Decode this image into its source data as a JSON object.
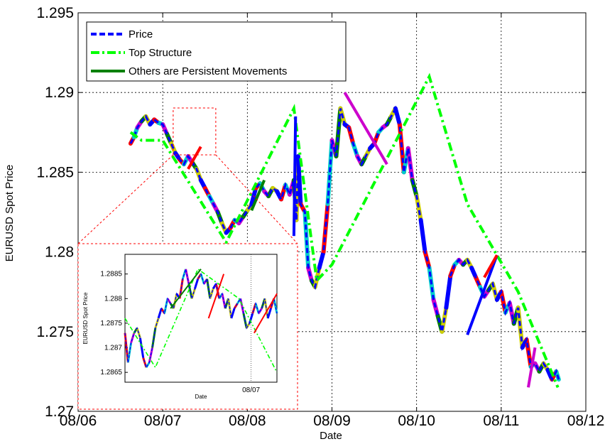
{
  "chart_data": {
    "type": "line",
    "xlabel": "Date",
    "ylabel": "EURUSD Spot Price",
    "x_ticks": [
      "08/06",
      "08/07",
      "08/08",
      "08/09",
      "08/10",
      "08/11",
      "08/12"
    ],
    "y_ticks": [
      "1.27",
      "1.275",
      "1.28",
      "1.285",
      "1.29",
      "1.295"
    ],
    "xlim": [
      0,
      6
    ],
    "ylim": [
      1.27,
      1.295
    ],
    "grid": true,
    "legend_position": "top-left",
    "legend": [
      {
        "label": "Price",
        "color": "#0000ff",
        "style": "dashed"
      },
      {
        "label": "Top Structure",
        "color": "#00ff00",
        "style": "dashdot"
      },
      {
        "label": "Others are Persistent Movements",
        "color": "#008000",
        "style": "solid"
      }
    ],
    "series": [
      {
        "name": "Price",
        "color": "#0000ff",
        "x": [
          0.62,
          0.66,
          0.7,
          0.75,
          0.8,
          0.85,
          0.9,
          0.95,
          1.0,
          1.05,
          1.1,
          1.15,
          1.2,
          1.25,
          1.3,
          1.35,
          1.4,
          1.45,
          1.5,
          1.55,
          1.6,
          1.65,
          1.7,
          1.75,
          1.8,
          1.85,
          1.9,
          1.95,
          2.0,
          2.05,
          2.1,
          2.15,
          2.2,
          2.25,
          2.3,
          2.35,
          2.4,
          2.45,
          2.5,
          2.55,
          2.58,
          2.6,
          2.63,
          2.68,
          2.72,
          2.76,
          2.8,
          2.85,
          2.9,
          2.95,
          3.0,
          3.05,
          3.1,
          3.15,
          3.2,
          3.25,
          3.3,
          3.35,
          3.4,
          3.45,
          3.5,
          3.55,
          3.6,
          3.65,
          3.7,
          3.75,
          3.8,
          3.85,
          3.9,
          3.95,
          4.0,
          4.05,
          4.1,
          4.15,
          4.2,
          4.25,
          4.3,
          4.35,
          4.4,
          4.45,
          4.5,
          4.55,
          4.6,
          4.65,
          4.7,
          4.75,
          4.8,
          4.85,
          4.9,
          4.95,
          5.0,
          5.05,
          5.1,
          5.15,
          5.2,
          5.25,
          5.3,
          5.35,
          5.4,
          5.45,
          5.5,
          5.55,
          5.6,
          5.65,
          5.68
        ],
        "y": [
          1.2868,
          1.2872,
          1.2878,
          1.2882,
          1.2885,
          1.288,
          1.2883,
          1.2881,
          1.288,
          1.2874,
          1.2868,
          1.2862,
          1.2858,
          1.2855,
          1.286,
          1.2856,
          1.2852,
          1.2845,
          1.284,
          1.2835,
          1.283,
          1.2825,
          1.2818,
          1.2812,
          1.2815,
          1.282,
          1.2818,
          1.2822,
          1.2826,
          1.283,
          1.284,
          1.2843,
          1.2838,
          1.2835,
          1.284,
          1.2838,
          1.2833,
          1.2842,
          1.2836,
          1.2845,
          1.282,
          1.286,
          1.283,
          1.2825,
          1.279,
          1.2782,
          1.2778,
          1.279,
          1.28,
          1.283,
          1.287,
          1.286,
          1.289,
          1.288,
          1.2878,
          1.2868,
          1.286,
          1.2855,
          1.286,
          1.2865,
          1.2868,
          1.2875,
          1.2878,
          1.288,
          1.2885,
          1.289,
          1.288,
          1.285,
          1.2865,
          1.2845,
          1.2835,
          1.282,
          1.28,
          1.279,
          1.277,
          1.276,
          1.275,
          1.2765,
          1.2785,
          1.2792,
          1.2795,
          1.2792,
          1.2795,
          1.279,
          1.2784,
          1.2778,
          1.2772,
          1.2776,
          1.278,
          1.277,
          1.2775,
          1.2762,
          1.2768,
          1.2755,
          1.2765,
          1.274,
          1.2745,
          1.2728,
          1.273,
          1.2725,
          1.273,
          1.2726,
          1.272,
          1.2725,
          1.272
        ]
      },
      {
        "name": "Top Structure",
        "color": "#00ff00",
        "x": [
          0.62,
          0.75,
          1.0,
          1.75,
          2.55,
          2.82,
          3.0,
          4.15,
          4.6,
          5.2,
          5.67
        ],
        "y": [
          1.2875,
          1.287,
          1.287,
          1.2806,
          1.289,
          1.2782,
          1.2792,
          1.291,
          1.283,
          1.2775,
          1.2715
        ]
      },
      {
        "name": "Others are Persistent Movements",
        "color": "#008000",
        "segments": [
          {
            "x": [
              3.15,
              3.65
            ],
            "y": [
              1.29,
              1.2855
            ],
            "color": "#cc00cc"
          },
          {
            "x": [
              4.6,
              4.95
            ],
            "y": [
              1.2748,
              1.2798
            ],
            "color": "#0000ff"
          },
          {
            "x": [
              2.55,
              2.57
            ],
            "y": [
              1.281,
              1.2885
            ],
            "color": "#0000ff"
          },
          {
            "x": [
              5.32,
              5.4
            ],
            "y": [
              1.2715,
              1.274
            ],
            "color": "#cc00cc"
          },
          {
            "x": [
              1.3,
              1.45
            ],
            "y": [
              1.2852,
              1.2866
            ],
            "color": "#ff0000"
          },
          {
            "x": [
              2.05,
              2.2
            ],
            "y": [
              1.2826,
              1.2845
            ],
            "color": "#008000"
          },
          {
            "x": [
              4.8,
              4.95
            ],
            "y": [
              1.2784,
              1.2798
            ],
            "color": "#ff0000"
          }
        ]
      }
    ],
    "inset": {
      "xlabel": "Date",
      "ylabel": "EURUSD Spot Price",
      "x_ticks": [
        "08/07"
      ],
      "y_ticks": [
        "1.2865",
        "1.287",
        "1.2875",
        "1.288",
        "1.2885"
      ],
      "ylim": [
        1.2863,
        1.2889
      ],
      "xlim": [
        0,
        1
      ],
      "zoom_region": {
        "x": [
          0.62,
          1.0
        ],
        "y": [
          1.2863,
          1.2889
        ]
      },
      "price": {
        "x": [
          0.0,
          0.02,
          0.04,
          0.06,
          0.08,
          0.1,
          0.12,
          0.14,
          0.16,
          0.18,
          0.2,
          0.22,
          0.24,
          0.26,
          0.28,
          0.3,
          0.32,
          0.34,
          0.36,
          0.38,
          0.4,
          0.42,
          0.44,
          0.46,
          0.48,
          0.5,
          0.52,
          0.54,
          0.56,
          0.58,
          0.6,
          0.62,
          0.64,
          0.66,
          0.68,
          0.7,
          0.72,
          0.74,
          0.76,
          0.78,
          0.8,
          0.82,
          0.84,
          0.86,
          0.88,
          0.9,
          0.92,
          0.94,
          0.96,
          0.98,
          1.0
        ],
        "y": [
          1.2873,
          1.2867,
          1.2871,
          1.2873,
          1.2874,
          1.2872,
          1.2868,
          1.2866,
          1.2867,
          1.287,
          1.2874,
          1.2876,
          1.2878,
          1.2877,
          1.288,
          1.2879,
          1.2878,
          1.2881,
          1.288,
          1.2884,
          1.2886,
          1.2883,
          1.288,
          1.2882,
          1.2884,
          1.2885,
          1.2883,
          1.2884,
          1.288,
          1.2882,
          1.2883,
          1.288,
          1.2881,
          1.2878,
          1.288,
          1.2876,
          1.2878,
          1.2879,
          1.288,
          1.2877,
          1.2874,
          1.2875,
          1.2877,
          1.2879,
          1.2877,
          1.2878,
          1.288,
          1.2876,
          1.2878,
          1.288,
          1.2877
        ]
      },
      "top_structure": {
        "x": [
          0.0,
          0.2,
          0.48,
          0.75,
          1.0
        ],
        "y": [
          1.2876,
          1.2866,
          1.2886,
          1.288,
          1.2865
        ]
      },
      "segments": [
        {
          "x": [
            0.55,
            0.65
          ],
          "y": [
            1.2876,
            1.2885
          ],
          "color": "#ff0000"
        },
        {
          "x": [
            0.85,
            1.0
          ],
          "y": [
            1.2873,
            1.2881
          ],
          "color": "#ff0000"
        },
        {
          "x": [
            0.3,
            0.5
          ],
          "y": [
            1.2878,
            1.2886
          ],
          "color": "#008000"
        }
      ]
    }
  }
}
